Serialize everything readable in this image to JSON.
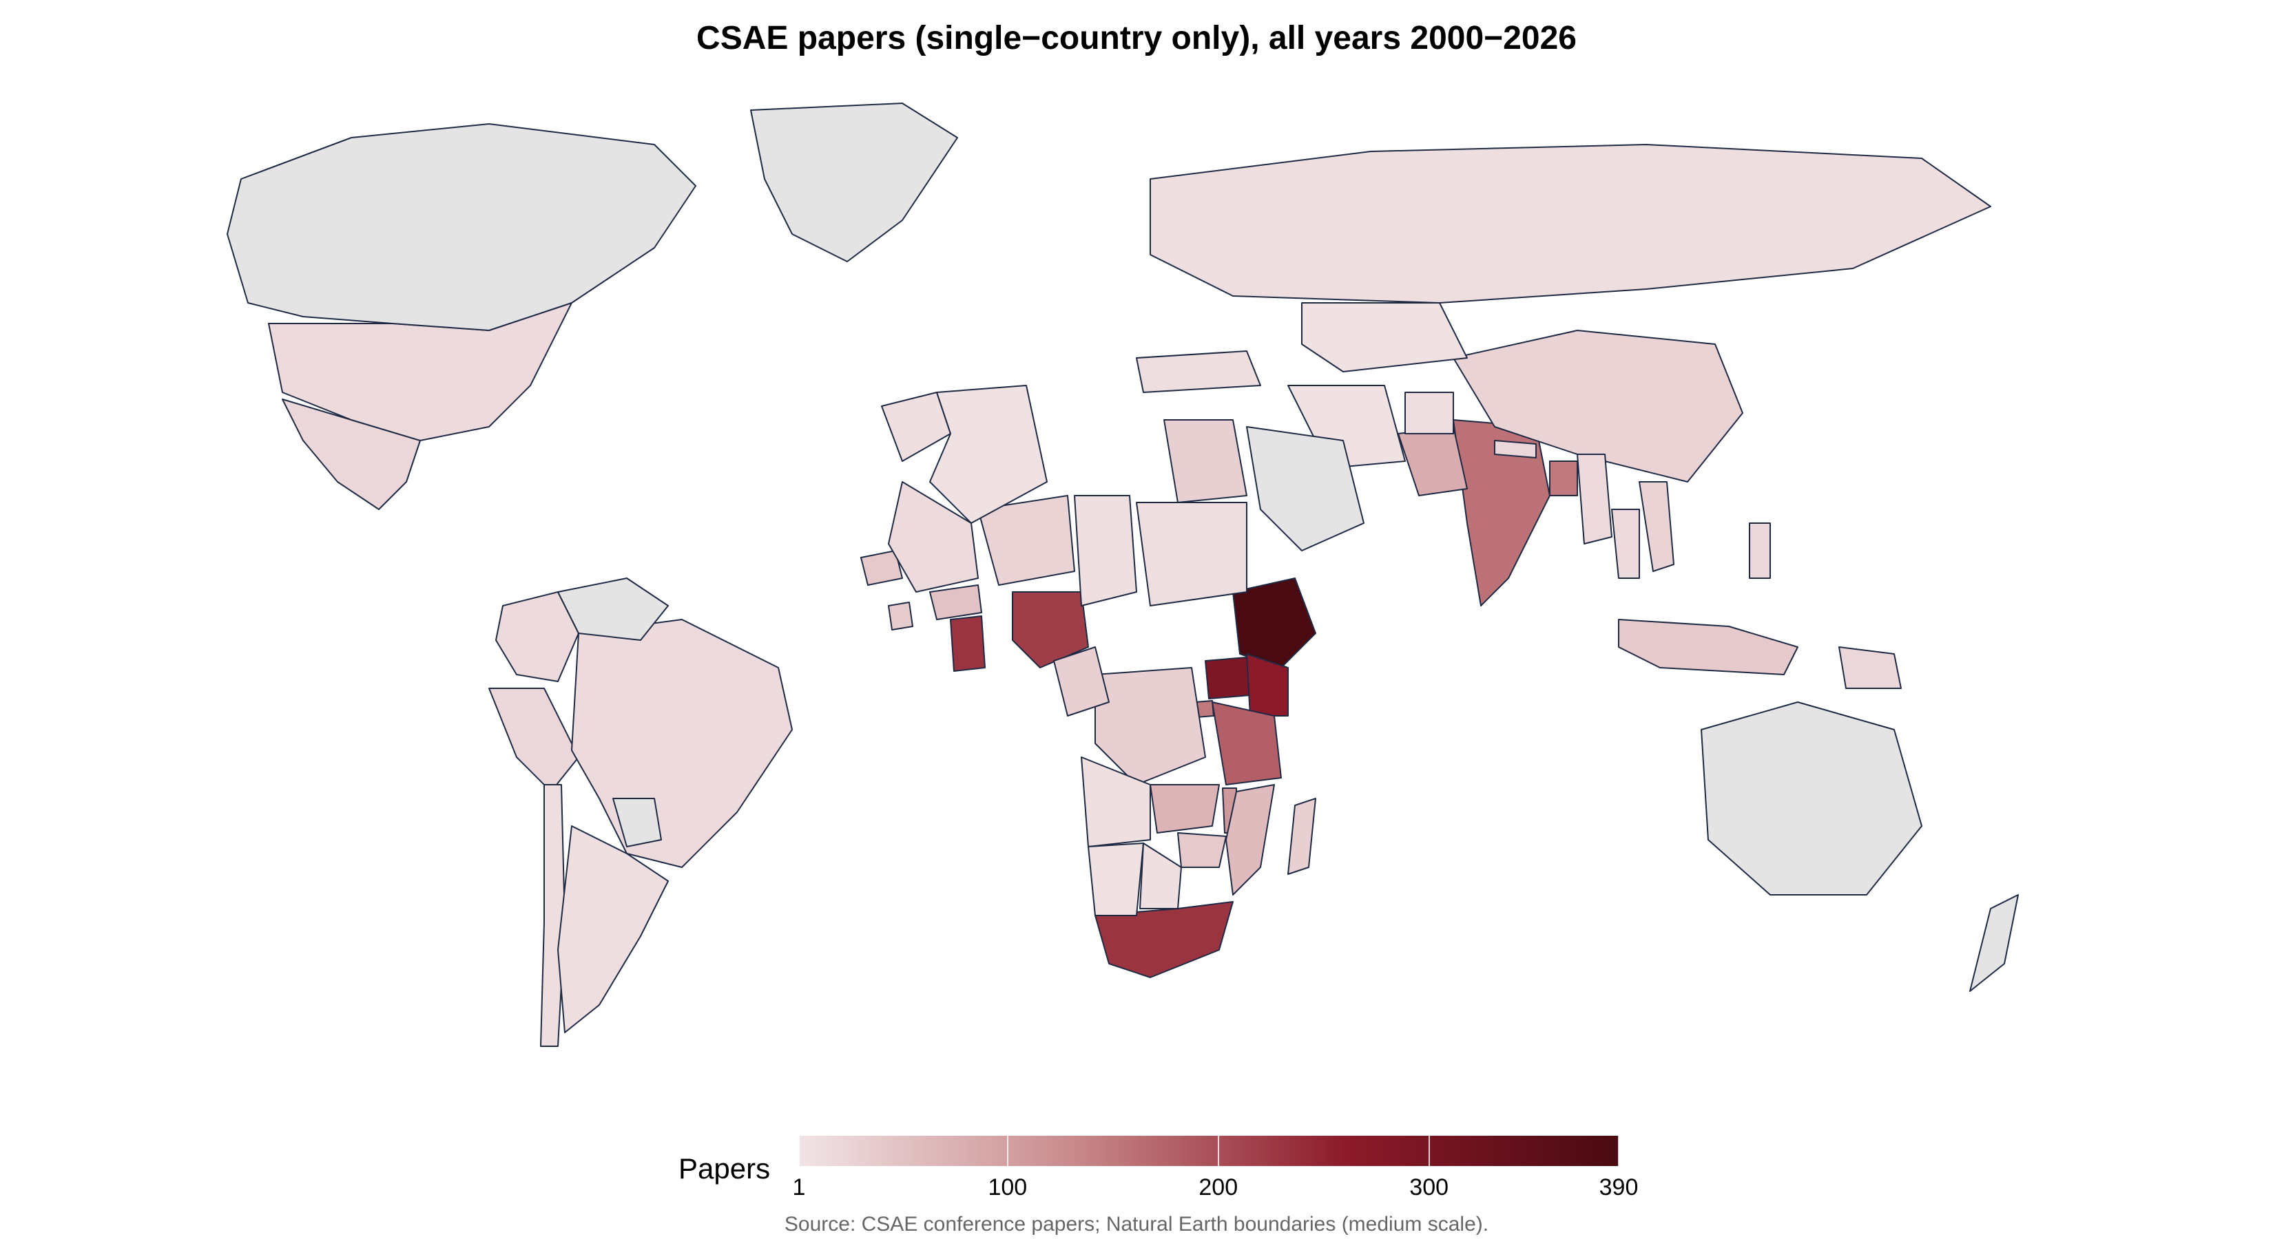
{
  "title": "CSAE papers (single−country only), all years 2000−2026",
  "legend": {
    "title": "Papers",
    "min": 1,
    "max": 390,
    "ticks": [
      {
        "value": 1,
        "label": "1"
      },
      {
        "value": 100,
        "label": "100"
      },
      {
        "value": 200,
        "label": "200"
      },
      {
        "value": 300,
        "label": "300"
      },
      {
        "value": 390,
        "label": "390"
      }
    ],
    "color_stops": [
      "#f1e4e6",
      "#c98a8c",
      "#8c1a2a",
      "#4a0a12"
    ]
  },
  "no_data_color": "#e4e4e4",
  "border_color": "#1e2a44",
  "source": "Source: CSAE conference papers; Natural Earth boundaries (medium scale).",
  "chart_data": {
    "type": "choropleth",
    "title": "CSAE papers (single−country only), all years 2000−2026",
    "value_label": "Papers",
    "range": [
      1,
      390
    ],
    "regions": [
      {
        "name": "Ethiopia",
        "value": 390
      },
      {
        "name": "Uganda",
        "value": 290
      },
      {
        "name": "Kenya",
        "value": 260
      },
      {
        "name": "South Africa",
        "value": 230
      },
      {
        "name": "Ghana",
        "value": 230
      },
      {
        "name": "Nigeria",
        "value": 220
      },
      {
        "name": "Tanzania",
        "value": 180
      },
      {
        "name": "India",
        "value": 160
      },
      {
        "name": "Rwanda",
        "value": 150
      },
      {
        "name": "Bangladesh",
        "value": 150
      },
      {
        "name": "Malawi",
        "value": 110
      },
      {
        "name": "Pakistan",
        "value": 80
      },
      {
        "name": "Zambia",
        "value": 70
      },
      {
        "name": "Mozambique",
        "value": 60
      },
      {
        "name": "Burkina Faso",
        "value": 50
      },
      {
        "name": "Indonesia",
        "value": 40
      },
      {
        "name": "Senegal",
        "value": 40
      },
      {
        "name": "Zimbabwe",
        "value": 40
      },
      {
        "name": "Egypt",
        "value": 30
      },
      {
        "name": "DR Congo",
        "value": 30
      },
      {
        "name": "Sierra Leone",
        "value": 35
      },
      {
        "name": "Madagascar",
        "value": 30
      },
      {
        "name": "Niger",
        "value": 25
      },
      {
        "name": "China",
        "value": 25
      },
      {
        "name": "Vietnam",
        "value": 25
      },
      {
        "name": "Cameroon",
        "value": 30
      },
      {
        "name": "Mexico",
        "value": 20
      },
      {
        "name": "Peru",
        "value": 20
      },
      {
        "name": "Colombia",
        "value": 15
      },
      {
        "name": "Brazil",
        "value": 15
      },
      {
        "name": "Chile",
        "value": 10
      },
      {
        "name": "Argentina",
        "value": 10
      },
      {
        "name": "Russia",
        "value": 10
      },
      {
        "name": "United States",
        "value": 15
      },
      {
        "name": "Turkey",
        "value": 10
      },
      {
        "name": "Kazakhstan",
        "value": 5
      },
      {
        "name": "Morocco",
        "value": 8
      },
      {
        "name": "Algeria",
        "value": 5
      },
      {
        "name": "Mali",
        "value": 15
      },
      {
        "name": "Sudan",
        "value": 10
      },
      {
        "name": "Chad",
        "value": 8
      },
      {
        "name": "Angola",
        "value": 8
      },
      {
        "name": "Namibia",
        "value": 5
      },
      {
        "name": "Botswana",
        "value": 8
      },
      {
        "name": "Papua New Guinea",
        "value": 20
      },
      {
        "name": "Philippines",
        "value": 20
      },
      {
        "name": "Thailand",
        "value": 15
      },
      {
        "name": "Myanmar",
        "value": 15
      },
      {
        "name": "Nepal",
        "value": 20
      },
      {
        "name": "Afghanistan",
        "value": 10
      },
      {
        "name": "Iran",
        "value": 5
      },
      {
        "name": "Canada",
        "value": null
      },
      {
        "name": "Greenland",
        "value": null
      },
      {
        "name": "Australia",
        "value": null
      },
      {
        "name": "Saudi Arabia",
        "value": null
      },
      {
        "name": "New Zealand",
        "value": null
      },
      {
        "name": "Venezuela",
        "value": null
      },
      {
        "name": "Paraguay",
        "value": null
      }
    ]
  }
}
